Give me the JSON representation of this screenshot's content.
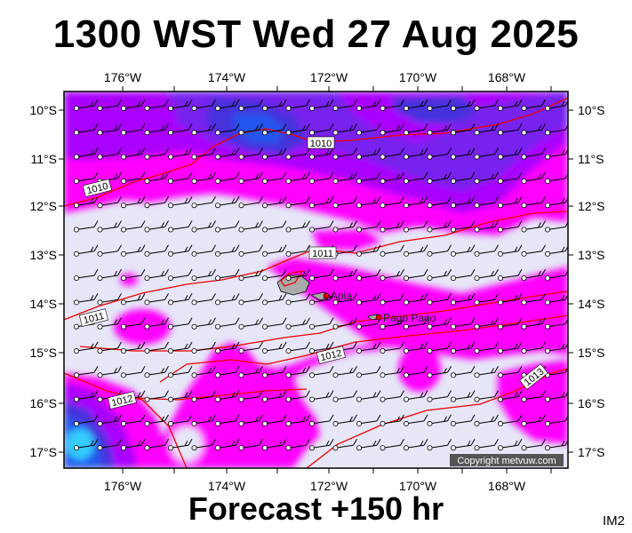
{
  "header": {
    "title": "1300 WST Wed 27 Aug 2025"
  },
  "footer": {
    "forecast": "Forecast +150 hr",
    "code": "IM2"
  },
  "copyright": "Copyright metvuw.com",
  "axes": {
    "lon_labels": [
      "176°W",
      "174°W",
      "172°W",
      "170°W",
      "168°W"
    ],
    "lat_labels": [
      "10°S",
      "11°S",
      "12°S",
      "13°S",
      "14°S",
      "15°S",
      "16°S",
      "17°S"
    ]
  },
  "places": [
    {
      "name": "Apia"
    },
    {
      "name": "Pago Pago"
    }
  ],
  "isobars": [
    {
      "label": "1010"
    },
    {
      "label": "1010"
    },
    {
      "label": "1011"
    },
    {
      "label": "1011"
    },
    {
      "label": "1012"
    },
    {
      "label": "1012"
    },
    {
      "label": "1013"
    }
  ],
  "colors": {
    "background": "#e6e6f7",
    "magenta": "#ff00ff",
    "violet": "#aa00ff",
    "purple": "#7722ee",
    "indigo": "#4433dd",
    "blue": "#2255ee",
    "cyan": "#33ccff",
    "isobar": "#ee0000",
    "barb": "#000000"
  }
}
